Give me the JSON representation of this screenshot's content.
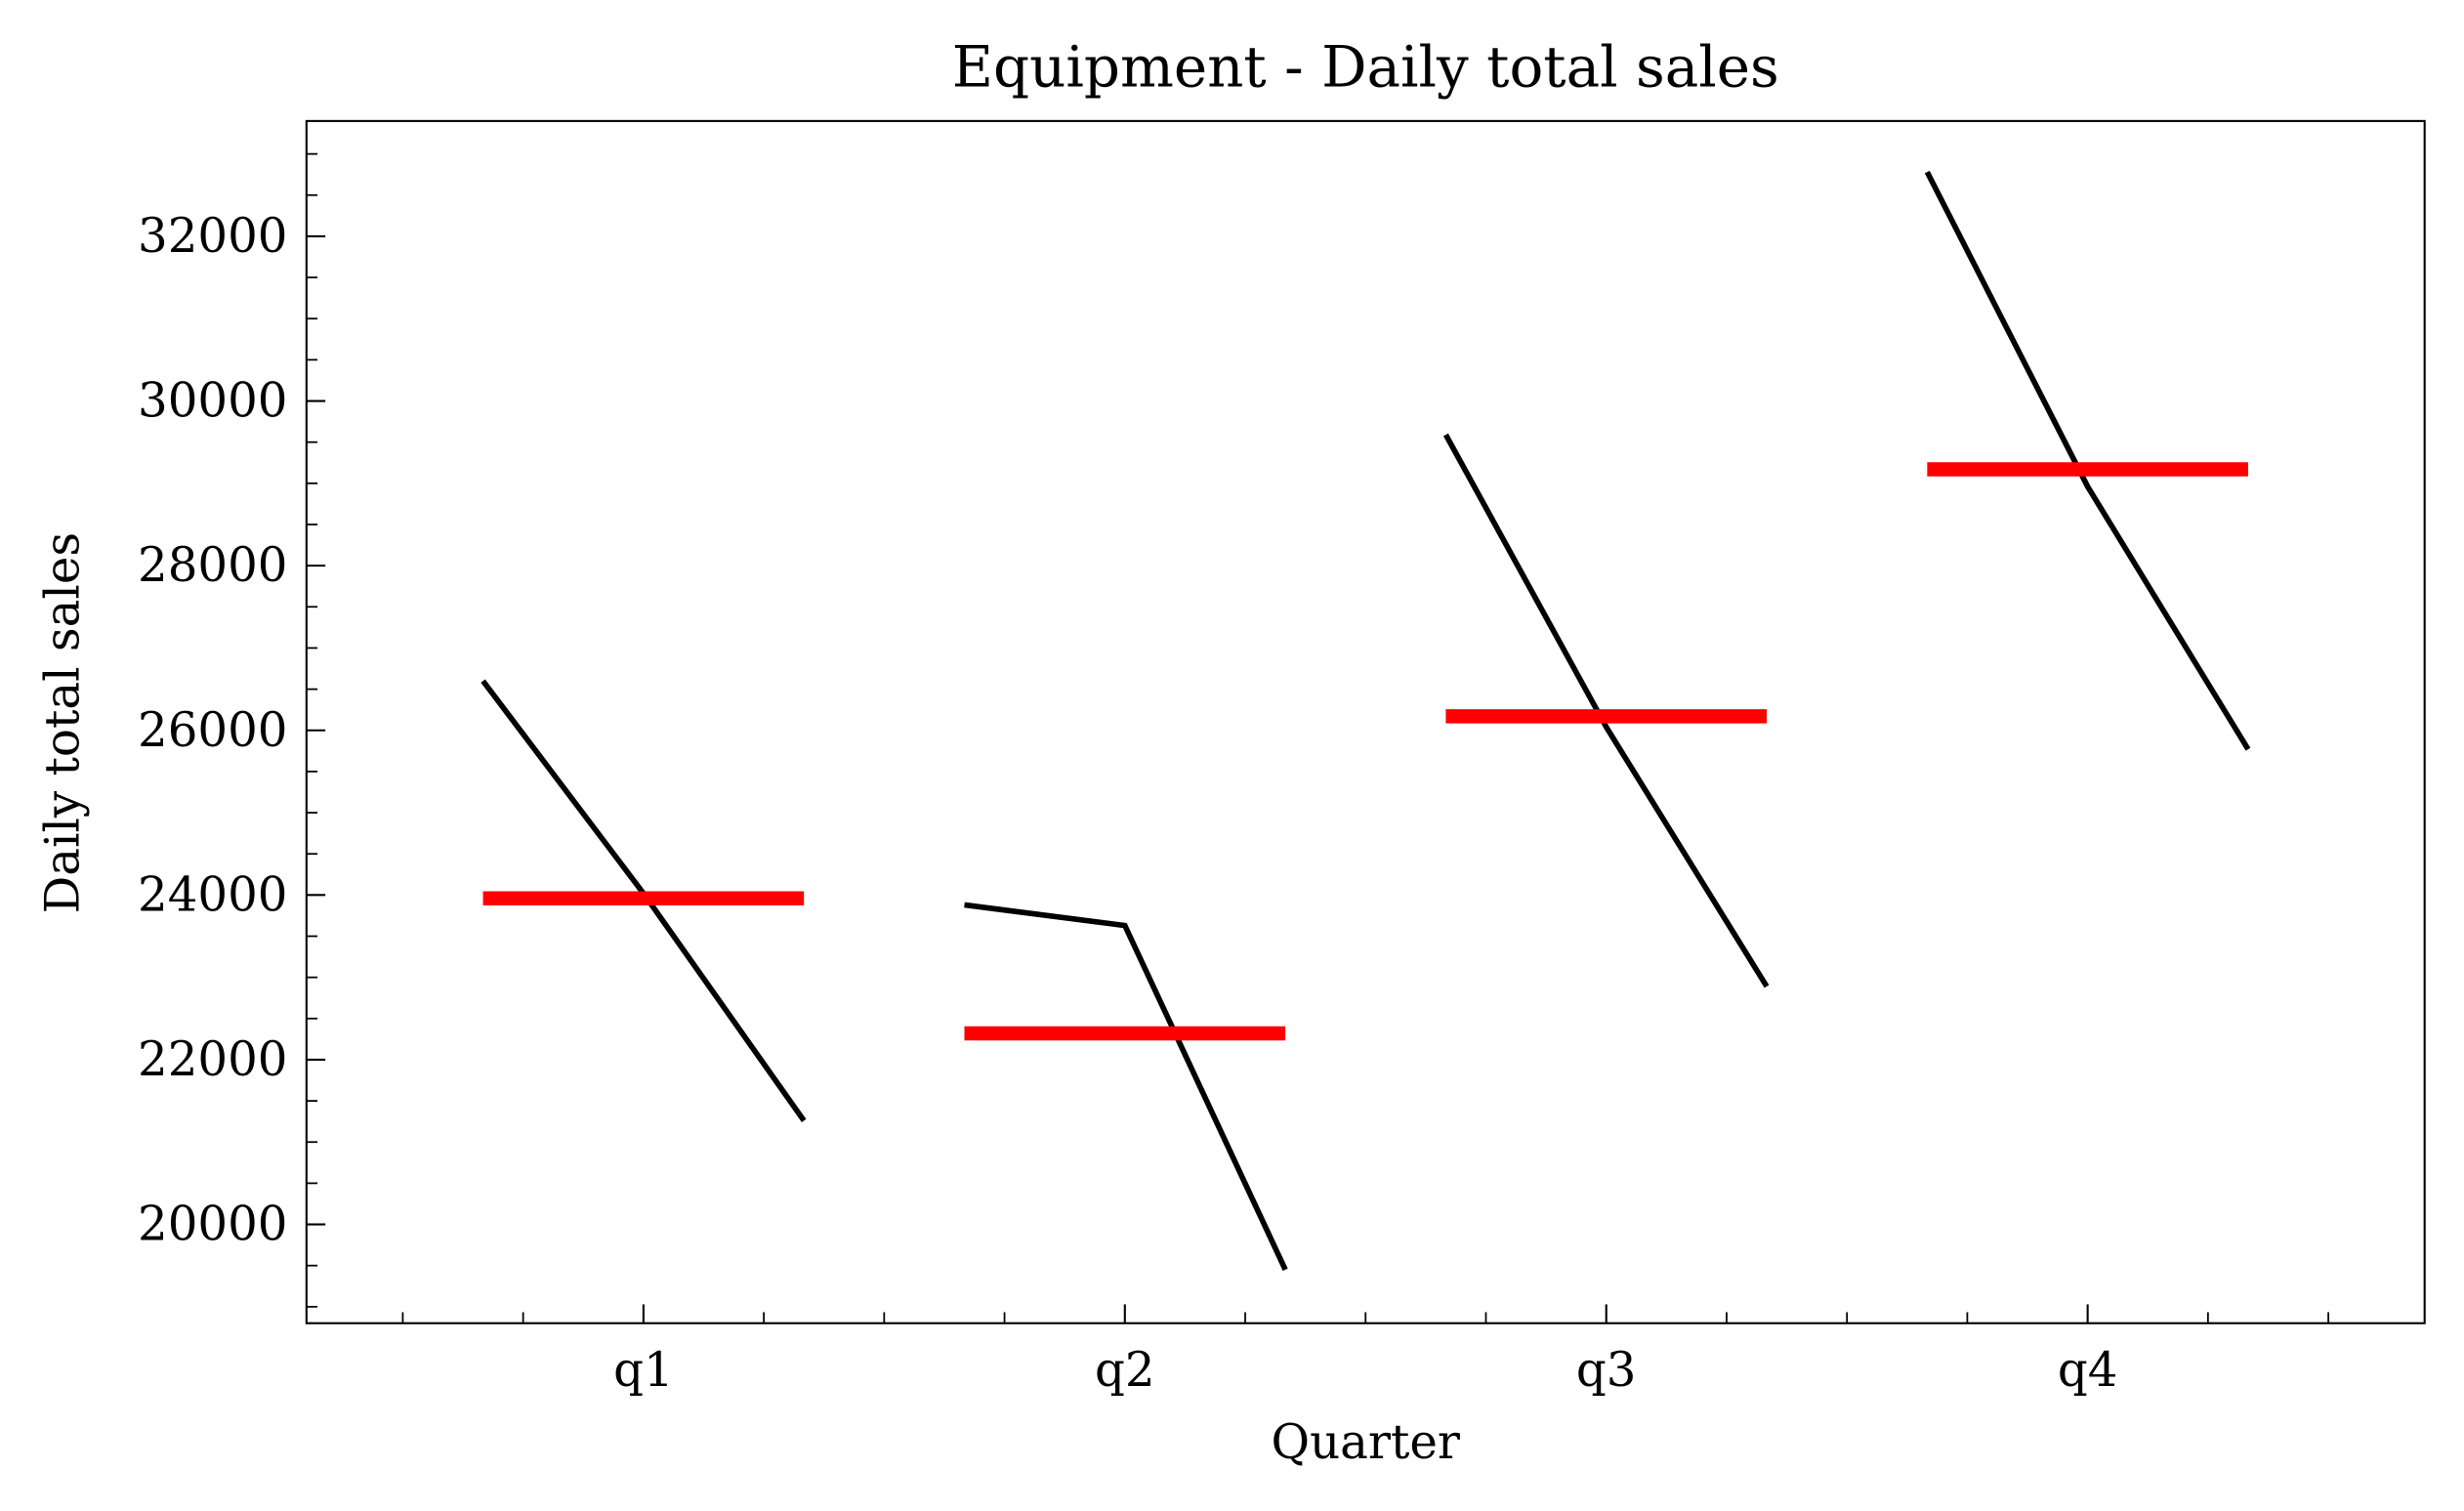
{
  "chart_data": {
    "type": "quarter",
    "title": "Equipment - Daily total sales",
    "xlabel": "Quarter",
    "ylabel": "Daily total sales",
    "categories": [
      "q1",
      "q2",
      "q3",
      "q4"
    ],
    "values": [
      [
        26600,
        24020,
        21260
      ],
      [
        23880,
        23630,
        19450
      ],
      [
        29590,
        26040,
        22890
      ],
      [
        32780,
        28960,
        25770
      ]
    ],
    "means": [
      23960,
      22320,
      26170,
      29170
    ],
    "line_color": "#000000",
    "mean_color": "#ff0000",
    "xlim": [
      -0.7,
      3.7
    ],
    "xticks": [
      0,
      1,
      2,
      3
    ],
    "xminorticks": [
      -0.5,
      -0.25,
      0.25,
      0.5,
      0.75,
      1.25,
      1.5,
      1.75,
      2.25,
      2.5,
      2.75,
      3.25,
      3.5
    ],
    "ylim": [
      18800,
      33400
    ],
    "yticks": [
      20000,
      22000,
      24000,
      26000,
      28000,
      30000,
      32000
    ],
    "yminorticks": [
      19000,
      19500,
      20500,
      21000,
      21500,
      22500,
      23000,
      23500,
      24500,
      25000,
      25500,
      26500,
      27000,
      27500,
      28500,
      29000,
      29500,
      30500,
      31000,
      31500,
      32500,
      33000
    ],
    "tick_direction": "in"
  }
}
